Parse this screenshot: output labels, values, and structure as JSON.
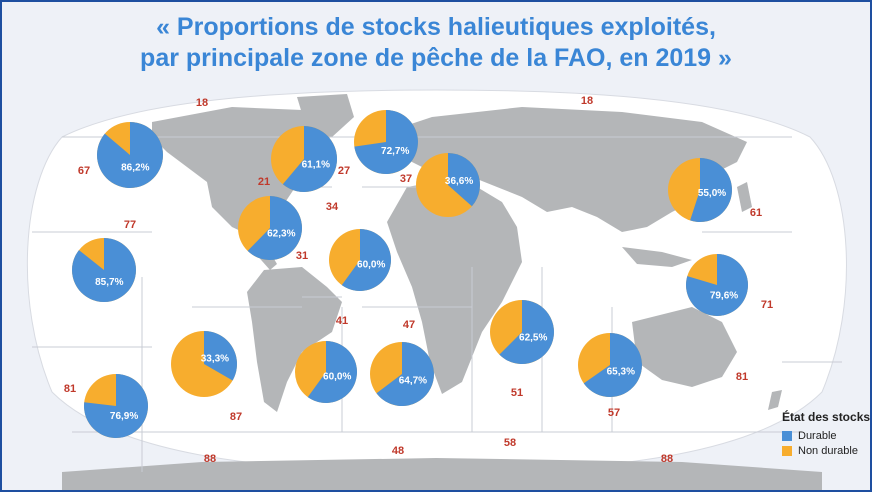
{
  "title": {
    "line1": "« Proportions de stocks halieutiques exploités,",
    "line2": "par principale zone de pêche de la FAO, en 2019 »"
  },
  "colors": {
    "durable": "#4a8fd6",
    "non_durable": "#f7ad2e",
    "land": "#b4b6b8",
    "ocean": "#ffffff",
    "zone_label": "#c0392b",
    "title": "#3a86d6"
  },
  "legend": {
    "title": "État des stocks",
    "durable": "Durable",
    "non_durable": "Non durable"
  },
  "zones": [
    {
      "code": "18",
      "pie": null
    },
    {
      "code": "18",
      "pie": null
    },
    {
      "code": "67",
      "pie": {
        "durable": 86.2,
        "label": "86,2%"
      }
    },
    {
      "code": "21",
      "pie": {
        "durable": 61.1,
        "label": "61,1%"
      }
    },
    {
      "code": "27",
      "pie": {
        "durable": 72.7,
        "label": "72,7%"
      }
    },
    {
      "code": "37",
      "pie": {
        "durable": 36.6,
        "label": "36,6%"
      }
    },
    {
      "code": "61",
      "pie": {
        "durable": 55.0,
        "label": "55,0%"
      }
    },
    {
      "code": "77",
      "pie": {
        "durable": 85.7,
        "label": "85,7%"
      }
    },
    {
      "code": "34",
      "pie": {
        "durable": 60.0,
        "label": "60,0%"
      }
    },
    {
      "code": "31",
      "pie": {
        "durable": 62.3,
        "label": "62,3%"
      }
    },
    {
      "code": "71",
      "pie": {
        "durable": 79.6,
        "label": "79,6%"
      }
    },
    {
      "code": "87",
      "pie": {
        "durable": 33.3,
        "label": "33,3%"
      }
    },
    {
      "code": "41",
      "pie": {
        "durable": 60.0,
        "label": "60,0%"
      }
    },
    {
      "code": "47",
      "pie": {
        "durable": 64.7,
        "label": "64,7%"
      }
    },
    {
      "code": "51",
      "pie": {
        "durable": 62.5,
        "label": "62,5%"
      }
    },
    {
      "code": "57",
      "pie": {
        "durable": 65.3,
        "label": "65,3%"
      }
    },
    {
      "code": "81",
      "pie": {
        "durable": 76.9,
        "label": "76,9%"
      }
    },
    {
      "code": "81",
      "pie": null
    },
    {
      "code": "88",
      "pie": null
    },
    {
      "code": "48",
      "pie": null
    },
    {
      "code": "58",
      "pie": null
    },
    {
      "code": "88",
      "pie": null
    }
  ]
}
